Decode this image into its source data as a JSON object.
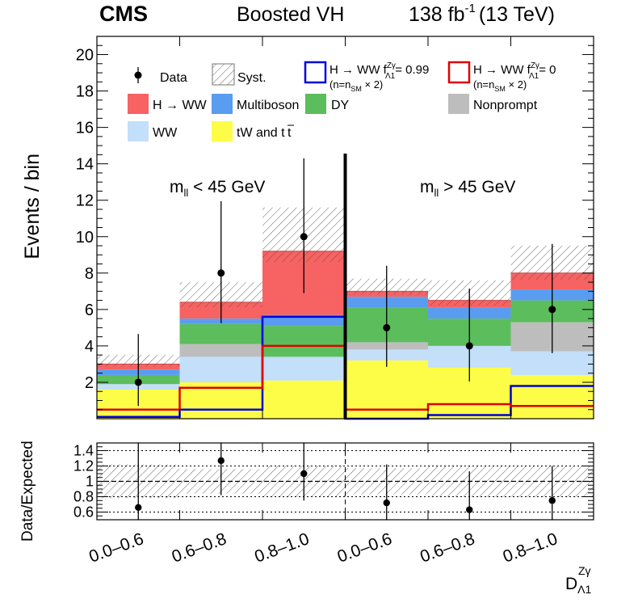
{
  "header": {
    "experiment": "CMS",
    "analysis": "Boosted VH",
    "lumi_value": "138 fb",
    "lumi_exp": "-1",
    "energy": "(13 TeV)"
  },
  "colors": {
    "hww": "#f76262",
    "multiboson": "#5a9cf0",
    "dy": "#5cbd5c",
    "nonprompt": "#bdbdbd",
    "ww": "#c3dff9",
    "tw_ttbar": "#fdfd47",
    "bsm_099": "#0000dd",
    "bsm_0": "#e00000",
    "data": "#000000",
    "syst_hatch": "#555555"
  },
  "chart_data": {
    "type": "bar",
    "stacked": true,
    "categories": [
      "0.0–0.6",
      "0.6–0.8",
      "0.8–1.0",
      "0.0–0.6",
      "0.6–0.8",
      "0.8–1.0"
    ],
    "regions": [
      {
        "label_main": "m",
        "label_sub": "ll",
        "label_rest": " < 45 GeV",
        "bins": [
          0,
          1,
          2
        ]
      },
      {
        "label_main": "m",
        "label_sub": "ll",
        "label_rest": " > 45 GeV",
        "bins": [
          3,
          4,
          5
        ]
      }
    ],
    "xlabel": {
      "main": "D",
      "sub": "Λ1",
      "sup": "Zγ"
    },
    "ylabel": "Events / bin",
    "ylim": [
      0,
      21
    ],
    "yticks": [
      2,
      4,
      6,
      8,
      10,
      12,
      14,
      16,
      18,
      20
    ],
    "series": [
      {
        "key": "tw_ttbar",
        "name": "tW and t",
        "name_bar": "t",
        "values": [
          1.6,
          2.0,
          2.1,
          3.2,
          2.8,
          2.4
        ]
      },
      {
        "key": "ww",
        "name": "WW",
        "values": [
          0.3,
          1.4,
          1.3,
          0.6,
          1.2,
          1.3
        ]
      },
      {
        "key": "nonprompt",
        "name": "Nonprompt",
        "values": [
          0.0,
          0.7,
          0.0,
          0.4,
          0.0,
          1.6
        ]
      },
      {
        "key": "dy",
        "name": "DY",
        "values": [
          0.5,
          1.1,
          1.7,
          1.9,
          1.5,
          1.2
        ]
      },
      {
        "key": "multiboson",
        "name": "Multiboson",
        "values": [
          0.3,
          0.3,
          0.6,
          0.6,
          0.6,
          0.6
        ]
      },
      {
        "key": "hww",
        "name": "H → WW",
        "values": [
          0.3,
          0.9,
          3.5,
          0.3,
          0.4,
          0.9
        ]
      }
    ],
    "bsm_lines": [
      {
        "key": "bsm_099",
        "name": "H → WW f",
        "name_sup": "Zγ",
        "name_sub": "Λ1",
        "name_val": "= 0.99",
        "note": "(n=n",
        "note_sub": "SM",
        "note_rest": " × 2)",
        "values": [
          0.1,
          0.5,
          5.6,
          0.0,
          0.2,
          1.8
        ]
      },
      {
        "key": "bsm_0",
        "name": "H → WW f",
        "name_sup": "Zγ",
        "name_sub": "Λ1",
        "name_val": "= 0",
        "note": "(n=n",
        "note_sub": "SM",
        "note_rest": " × 2)",
        "values": [
          0.5,
          1.7,
          4.0,
          0.5,
          0.8,
          0.7
        ]
      }
    ],
    "syst_total": [
      3.5,
      7.5,
      11.6,
      7.7,
      7.6,
      9.5
    ],
    "data": {
      "name": "Data",
      "values": [
        2,
        8,
        10,
        5,
        4,
        6
      ],
      "err_low": [
        1.3,
        2.75,
        3.1,
        2.15,
        1.95,
        2.4
      ],
      "err_high": [
        2.65,
        3.95,
        4.3,
        3.4,
        3.15,
        3.6
      ]
    },
    "syst_label": "Syst.",
    "ratio": {
      "ylabel": "Data/Expected",
      "ylim": [
        0.5,
        1.5
      ],
      "yticks": [
        0.6,
        0.8,
        1.0,
        1.2,
        1.4
      ],
      "yticklabels": [
        "0.6",
        "0.8",
        "1",
        "1.2",
        "1.4"
      ],
      "values": [
        0.66,
        1.27,
        1.1,
        0.72,
        0.63,
        0.75
      ],
      "err_low": [
        0.5,
        0.45,
        0.35,
        0.4,
        0.35,
        0.35
      ],
      "err_high": [
        0.85,
        0.5,
        0.45,
        0.5,
        0.5,
        0.45
      ],
      "band_low": [
        0.78,
        0.84,
        0.8,
        0.83,
        0.8,
        0.8
      ],
      "band_high": [
        1.22,
        1.16,
        1.2,
        1.17,
        1.2,
        1.2
      ]
    }
  }
}
